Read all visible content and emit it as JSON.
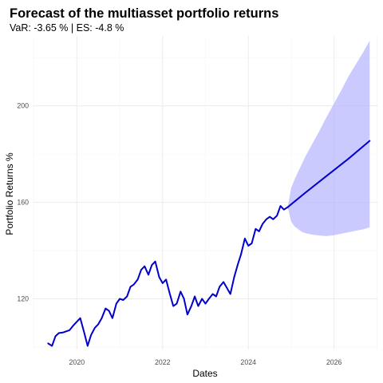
{
  "chart_data": {
    "type": "line",
    "title": "Forecast of the multiasset portfolio returns",
    "subtitle": "VaR: -3.65 % | ES: -4.8 %",
    "xlabel": "Dates",
    "ylabel": "Portfolio Returns %",
    "x_ticks": [
      2020,
      2022,
      2024,
      2026
    ],
    "y_ticks": [
      120,
      160,
      200
    ],
    "xlim": [
      2018.97,
      2027.03
    ],
    "ylim": [
      99,
      229
    ],
    "grid": true,
    "colors": {
      "line": "#0000cd",
      "band": "#b3b3ff"
    },
    "series": [
      {
        "role": "observed",
        "x": [
          2019.33,
          2019.42,
          2019.5,
          2019.58,
          2019.67,
          2019.75,
          2019.83,
          2019.92,
          2020.0,
          2020.08,
          2020.17,
          2020.25,
          2020.33,
          2020.42,
          2020.5,
          2020.58,
          2020.67,
          2020.75,
          2020.83,
          2020.92,
          2021.0,
          2021.08,
          2021.17,
          2021.25,
          2021.33,
          2021.42,
          2021.5,
          2021.58,
          2021.67,
          2021.75,
          2021.83,
          2021.92,
          2022.0,
          2022.08,
          2022.17,
          2022.25,
          2022.33,
          2022.42,
          2022.5,
          2022.58,
          2022.67,
          2022.75,
          2022.83,
          2022.92,
          2023.0,
          2023.08,
          2023.17,
          2023.25,
          2023.33,
          2023.42,
          2023.5,
          2023.58,
          2023.67,
          2023.75,
          2023.83,
          2023.92,
          2024.0,
          2024.08,
          2024.17,
          2024.25,
          2024.33,
          2024.42,
          2024.5,
          2024.58,
          2024.67,
          2024.75,
          2024.83,
          2024.92
        ],
        "y": [
          101.5,
          100.5,
          104.5,
          105.8,
          106.0,
          106.5,
          107.0,
          109.0,
          110.5,
          112.0,
          106.0,
          100.5,
          105.0,
          108.0,
          109.5,
          112.0,
          116.0,
          115.0,
          112.0,
          118.0,
          120.0,
          119.5,
          121.0,
          125.0,
          126.0,
          128.0,
          132.0,
          133.5,
          130.0,
          134.0,
          135.5,
          129.0,
          126.5,
          128.0,
          122.0,
          117.0,
          118.0,
          123.0,
          120.0,
          113.5,
          117.0,
          121.0,
          117.0,
          120.0,
          118.0,
          120.0,
          122.0,
          121.0,
          125.0,
          127.0,
          124.5,
          122.0,
          129.0,
          134.0,
          138.5,
          145.0,
          142.0,
          143.0,
          149.0,
          148.0,
          151.0,
          153.0,
          154.0,
          153.0,
          154.5,
          158.5,
          157.0,
          158.0
        ]
      },
      {
        "role": "forecast",
        "x": [
          2024.92,
          2025.33,
          2025.83,
          2026.33,
          2026.83
        ],
        "y": [
          158.0,
          164.0,
          171.0,
          178.0,
          185.5
        ]
      }
    ],
    "band": {
      "x": [
        2024.92,
        2025.0,
        2025.08,
        2025.17,
        2025.25,
        2025.33,
        2025.5,
        2025.67,
        2025.83,
        2026.0,
        2026.17,
        2026.33,
        2026.5,
        2026.67,
        2026.83
      ],
      "upper": [
        158.0,
        166.0,
        169.5,
        173.0,
        176.0,
        179.0,
        184.5,
        190.0,
        195.5,
        201.0,
        206.5,
        212.0,
        217.0,
        222.0,
        227.0
      ],
      "lower": [
        158.0,
        152.0,
        150.0,
        148.8,
        147.8,
        147.2,
        146.6,
        146.2,
        146.0,
        146.4,
        147.0,
        147.6,
        148.2,
        148.8,
        149.6
      ]
    }
  }
}
